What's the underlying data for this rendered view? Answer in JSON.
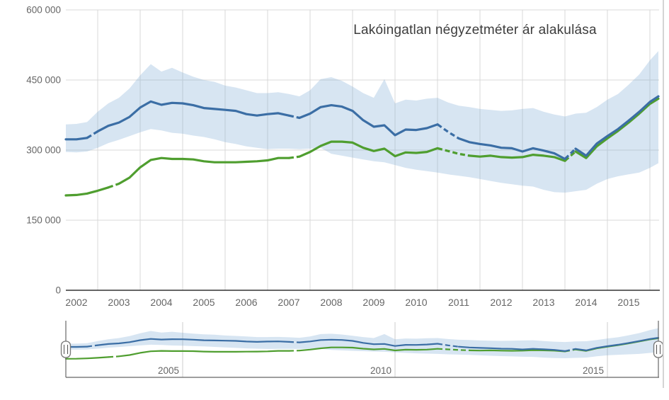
{
  "chart_data": {
    "type": "line",
    "title": "Lakóingatlan négyzetméter ár alakulása",
    "grid": true,
    "legend": "none",
    "x_range": [
      2002.25,
      2016.2
    ],
    "ylim": [
      0,
      600000
    ],
    "y_axis": {
      "tick_labels": [
        "600 000",
        "450 000",
        "300 000",
        "150 000",
        "0"
      ],
      "tick_values": [
        600000,
        450000,
        300000,
        150000,
        0
      ]
    },
    "x_axis": {
      "labels": [
        "2002",
        "2003",
        "2004",
        "2005",
        "2006",
        "2007",
        "2008",
        "2009",
        "2010",
        "2011",
        "2012",
        "2013",
        "2014",
        "2015"
      ],
      "grid_years": [
        2003,
        2004,
        2005,
        2006,
        2007,
        2008,
        2009,
        2010,
        2011,
        2012,
        2013,
        2014,
        2015,
        2016
      ]
    },
    "t": [
      2002.25,
      2002.5,
      2002.75,
      2003,
      2003.25,
      2003.5,
      2003.75,
      2004,
      2004.25,
      2004.5,
      2004.75,
      2005,
      2005.25,
      2005.5,
      2005.75,
      2006,
      2006.25,
      2006.5,
      2006.75,
      2007,
      2007.25,
      2007.5,
      2007.75,
      2008,
      2008.25,
      2008.5,
      2008.75,
      2009,
      2009.25,
      2009.5,
      2009.75,
      2010,
      2010.25,
      2010.5,
      2010.75,
      2011,
      2011.25,
      2011.5,
      2011.75,
      2012,
      2012.25,
      2012.5,
      2012.75,
      2013,
      2013.25,
      2013.5,
      2013.75,
      2014,
      2014.25,
      2014.5,
      2014.75,
      2015,
      2015.25,
      2015.5,
      2015.75,
      2016,
      2016.2
    ],
    "values": {
      "blue": [
        323000,
        323000,
        326000,
        340000,
        352000,
        359000,
        371000,
        391000,
        404000,
        397000,
        401000,
        400000,
        396000,
        390000,
        388000,
        386000,
        384000,
        377000,
        374000,
        377000,
        379000,
        374000,
        369000,
        378000,
        392000,
        396000,
        393000,
        384000,
        364000,
        350000,
        353000,
        332000,
        344000,
        343000,
        347000,
        355000,
        339000,
        325000,
        317000,
        313000,
        310000,
        305000,
        304000,
        297000,
        304000,
        299000,
        293000,
        281000,
        303000,
        288000,
        314000,
        330000,
        345000,
        363000,
        382000,
        403000,
        415000
      ],
      "green": [
        203000,
        204000,
        207000,
        213000,
        220000,
        228000,
        241000,
        263000,
        279000,
        283000,
        281000,
        281000,
        280000,
        276000,
        274000,
        274000,
        274000,
        275000,
        276000,
        278000,
        283000,
        283000,
        286000,
        296000,
        309000,
        318000,
        318000,
        316000,
        305000,
        298000,
        303000,
        287000,
        295000,
        294000,
        296000,
        304000,
        298000,
        292000,
        288000,
        286000,
        288000,
        285000,
        284000,
        285000,
        290000,
        288000,
        285000,
        277000,
        297000,
        283000,
        308000,
        325000,
        341000,
        359000,
        378000,
        399000,
        410000
      ]
    },
    "band": {
      "fill": "rgba(130,175,215,0.32)",
      "high": [
        355000,
        356000,
        360000,
        382000,
        400000,
        412000,
        432000,
        460000,
        484000,
        468000,
        476000,
        466000,
        457000,
        450000,
        446000,
        438000,
        434000,
        428000,
        422000,
        422000,
        424000,
        420000,
        415000,
        428000,
        452000,
        456000,
        448000,
        436000,
        422000,
        412000,
        452000,
        400000,
        408000,
        406000,
        410000,
        412000,
        402000,
        395000,
        392000,
        388000,
        386000,
        384000,
        385000,
        388000,
        390000,
        382000,
        376000,
        372000,
        378000,
        380000,
        392000,
        408000,
        420000,
        440000,
        462000,
        492000,
        512000
      ],
      "low": [
        296000,
        295000,
        297000,
        305000,
        315000,
        322000,
        330000,
        338000,
        345000,
        342000,
        337000,
        335000,
        331000,
        328000,
        323000,
        317000,
        313000,
        308000,
        305000,
        302000,
        303000,
        303000,
        302000,
        303000,
        305000,
        292000,
        288000,
        284000,
        280000,
        276000,
        274000,
        268000,
        262000,
        258000,
        255000,
        252000,
        248000,
        245000,
        242000,
        238000,
        234000,
        230000,
        227000,
        224000,
        222000,
        215000,
        210000,
        209000,
        212000,
        215000,
        228000,
        238000,
        244000,
        248000,
        252000,
        262000,
        272000
      ]
    },
    "series": [
      {
        "id": "price-line-green",
        "color": "#4f9e2f",
        "values_key": "green",
        "dashed_ranges": [
          [
            2003.24,
            2003.51
          ],
          [
            2007.49,
            2007.76
          ],
          [
            2010.99,
            2011.76
          ],
          [
            2013.99,
            2014.26
          ]
        ]
      },
      {
        "id": "price-line-blue",
        "color": "#3b6ea5",
        "values_key": "blue",
        "dashed_ranges": [
          [
            2002.74,
            2003.01
          ],
          [
            2007.49,
            2007.76
          ],
          [
            2010.99,
            2011.51
          ],
          [
            2013.99,
            2014.26
          ]
        ]
      }
    ],
    "navigator": {
      "tick_labels": [
        "2005",
        "2010",
        "2015"
      ],
      "tick_values": [
        2005,
        2010,
        2015
      ]
    },
    "colors": {
      "grid": "#d8d8d8",
      "axis_line": "#333333",
      "label": "#666666",
      "title": "#3d3d3d",
      "nav_border": "#666666",
      "nav_grid": "#cccccc",
      "handle_fill": "#fbfbfb",
      "handle_stroke": "#777777",
      "handle_grip": "#555555"
    }
  }
}
